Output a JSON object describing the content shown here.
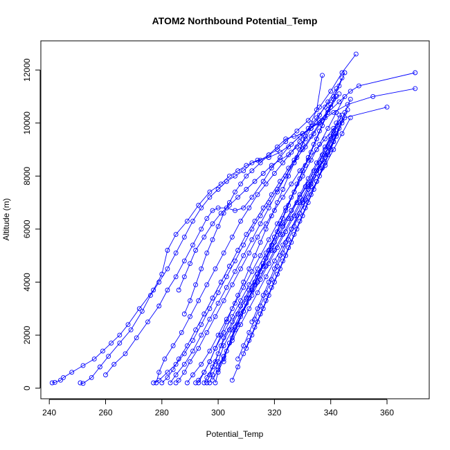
{
  "chart_data": {
    "type": "line",
    "title": "ATOM2 Northbound Potential_Temp",
    "xlabel": "Potential_Temp",
    "ylabel": "Altitude (m)",
    "xlim": [
      237,
      375
    ],
    "ylim": [
      -400,
      13100
    ],
    "xticks": [
      240,
      260,
      280,
      300,
      320,
      340,
      360
    ],
    "yticks": [
      0,
      2000,
      4000,
      6000,
      8000,
      10000,
      12000
    ],
    "grid": false,
    "legend": "none",
    "series_color": "#0000ff",
    "markers": "open-circle",
    "series": [
      {
        "x": [
          241,
          242,
          244,
          245,
          248,
          252,
          256,
          259,
          262,
          265,
          268,
          272,
          277,
          280,
          282,
          285,
          289,
          293,
          297,
          301,
          304,
          307,
          310,
          314,
          318,
          322,
          326,
          330,
          335,
          339,
          343,
          347,
          350,
          370
        ],
        "y": [
          200,
          220,
          300,
          400,
          600,
          850,
          1100,
          1400,
          1700,
          2000,
          2400,
          3000,
          3700,
          4300,
          5200,
          5800,
          6300,
          6900,
          7400,
          7700,
          8000,
          8200,
          8400,
          8600,
          8700,
          8900,
          9200,
          9600,
          10000,
          10400,
          10800,
          11200,
          11400,
          11900
        ]
      },
      {
        "x": [
          251,
          252,
          255,
          258,
          261,
          265,
          269,
          273,
          276,
          279,
          282,
          285,
          288,
          291,
          294,
          297,
          300,
          303,
          306,
          309,
          312,
          315,
          318,
          321,
          324,
          328,
          332,
          336,
          340,
          344,
          349
        ],
        "y": [
          200,
          180,
          400,
          800,
          1200,
          1700,
          2200,
          2900,
          3500,
          4000,
          4500,
          5100,
          5700,
          6300,
          6800,
          7200,
          7500,
          7800,
          8000,
          8200,
          8500,
          8600,
          8800,
          9000,
          9300,
          9700,
          10100,
          10600,
          11200,
          11900,
          12600
        ]
      },
      {
        "x": [
          260,
          263,
          267,
          271,
          275,
          279,
          282,
          285,
          288,
          291,
          294,
          296,
          298,
          300,
          303,
          306,
          309,
          312,
          316,
          319,
          322,
          325,
          329,
          333,
          337,
          341,
          346,
          355,
          370
        ],
        "y": [
          500,
          900,
          1300,
          1900,
          2500,
          3100,
          3700,
          4200,
          4800,
          5400,
          6000,
          6400,
          6700,
          6800,
          6800,
          6700,
          6800,
          7200,
          7800,
          8300,
          8700,
          9100,
          9500,
          9800,
          10100,
          10400,
          10700,
          11000,
          11300
        ]
      },
      {
        "x": [
          278,
          279,
          281,
          284,
          287,
          290,
          293,
          296,
          299,
          302,
          305,
          308,
          311,
          314,
          317,
          320,
          323,
          326,
          329,
          332,
          335,
          338,
          341,
          344
        ],
        "y": [
          200,
          600,
          1100,
          1600,
          2100,
          2700,
          3300,
          3900,
          4500,
          5100,
          5700,
          6300,
          6800,
          7300,
          7700,
          8100,
          8500,
          8900,
          9300,
          9800,
          10200,
          10600,
          11000,
          11700
        ]
      },
      {
        "x": [
          280,
          282,
          284,
          286,
          289,
          292,
          295,
          298,
          301,
          304,
          307,
          310,
          313,
          316,
          319,
          322,
          325,
          328,
          331,
          334,
          337,
          340,
          343
        ],
        "y": [
          200,
          400,
          700,
          1100,
          1600,
          2200,
          2800,
          3400,
          4000,
          4600,
          5200,
          5800,
          6300,
          6800,
          7300,
          7800,
          8300,
          8700,
          9100,
          9600,
          10100,
          10600,
          11100
        ]
      },
      {
        "x": [
          285,
          286,
          288,
          290,
          293,
          296,
          299,
          302,
          305,
          308,
          311,
          314,
          317,
          320,
          323,
          326,
          329,
          332,
          335,
          338,
          341,
          345,
          360
        ],
        "y": [
          200,
          300,
          600,
          1000,
          1500,
          2100,
          2700,
          3300,
          3900,
          4500,
          5100,
          5700,
          6200,
          6700,
          7200,
          7700,
          8200,
          8600,
          9000,
          9400,
          9800,
          10200,
          10600
        ]
      },
      {
        "x": [
          292,
          293,
          295,
          297,
          299,
          302,
          305,
          308,
          311,
          314,
          317,
          320,
          323,
          326,
          329,
          332,
          335,
          338,
          341,
          344,
          347
        ],
        "y": [
          200,
          300,
          600,
          1000,
          1500,
          2100,
          2700,
          3300,
          3900,
          4500,
          5100,
          5700,
          6200,
          6700,
          7200,
          7700,
          8200,
          8700,
          9300,
          10100,
          10900
        ]
      },
      {
        "x": [
          295,
          296,
          298,
          300,
          302,
          305,
          308,
          311,
          314,
          317,
          320,
          323,
          326,
          329,
          332,
          335,
          338,
          341,
          344
        ],
        "y": [
          200,
          400,
          800,
          1300,
          1900,
          2500,
          3100,
          3700,
          4300,
          4900,
          5500,
          6100,
          6700,
          7300,
          7900,
          8500,
          9100,
          9700,
          10300
        ]
      },
      {
        "x": [
          297,
          298,
          300,
          302,
          305,
          308,
          311,
          314,
          317,
          320,
          323,
          326,
          329,
          332,
          335,
          338,
          341,
          343
        ],
        "y": [
          200,
          500,
          1000,
          1600,
          2200,
          2800,
          3400,
          4000,
          4600,
          5200,
          5800,
          6400,
          7000,
          7600,
          8200,
          8800,
          9500,
          10300
        ]
      },
      {
        "x": [
          299,
          300,
          302,
          304,
          306,
          309,
          312,
          315,
          318,
          321,
          324,
          327,
          330,
          333,
          336,
          339,
          342,
          345
        ],
        "y": [
          200,
          600,
          1100,
          1700,
          2300,
          2900,
          3500,
          4100,
          4700,
          5300,
          5900,
          6500,
          7100,
          7700,
          8300,
          8900,
          9600,
          10400
        ]
      },
      {
        "x": [
          283,
          285,
          288,
          291,
          294,
          297,
          300,
          303,
          306,
          309,
          312,
          315,
          318,
          321,
          324,
          327,
          330,
          333,
          336,
          339,
          342
        ],
        "y": [
          200,
          500,
          900,
          1400,
          2000,
          2600,
          3200,
          3800,
          4400,
          5000,
          5600,
          6200,
          6800,
          7400,
          8000,
          8600,
          9200,
          9800,
          10300,
          10800,
          11300
        ]
      },
      {
        "x": [
          288,
          290,
          292,
          294,
          296,
          298,
          300,
          302,
          304,
          306,
          308,
          310,
          312,
          315,
          318,
          321,
          324,
          327,
          330,
          333,
          336
        ],
        "y": [
          2800,
          3300,
          3900,
          4500,
          5100,
          5600,
          6100,
          6600,
          7000,
          7400,
          7700,
          8000,
          8200,
          8500,
          8800,
          9100,
          9400,
          9500,
          9600,
          9800,
          10100
        ]
      },
      {
        "x": [
          277,
          279,
          282,
          285,
          288,
          291,
          294,
          297,
          300,
          303,
          306,
          309,
          312,
          315,
          318,
          321,
          324,
          327,
          330,
          333,
          336,
          339,
          342
        ],
        "y": [
          200,
          300,
          600,
          900,
          1300,
          1800,
          2400,
          3000,
          3600,
          4200,
          4800,
          5400,
          6000,
          6500,
          7000,
          7500,
          8000,
          8500,
          9000,
          9500,
          10000,
          10500,
          11000
        ]
      },
      {
        "x": [
          302,
          303,
          305,
          307,
          309,
          311,
          313,
          315,
          317,
          319,
          321,
          323,
          325,
          327,
          329,
          331,
          333,
          335,
          337,
          339,
          341,
          343,
          345
        ],
        "y": [
          1000,
          1400,
          1900,
          2400,
          2900,
          3400,
          3900,
          4400,
          4900,
          5400,
          5900,
          6400,
          6900,
          7400,
          7900,
          8400,
          8900,
          9400,
          9900,
          10400,
          10900,
          11400,
          11900
        ]
      },
      {
        "x": [
          300,
          302,
          304,
          306,
          308,
          310,
          312,
          314,
          316,
          318,
          320,
          322,
          324,
          326,
          328,
          330,
          332,
          334,
          336,
          338,
          340
        ],
        "y": [
          800,
          1200,
          1700,
          2200,
          2700,
          3200,
          3700,
          4200,
          4700,
          5200,
          5700,
          6200,
          6700,
          7200,
          7700,
          8200,
          8700,
          9200,
          9700,
          10200,
          10700
        ]
      },
      {
        "x": [
          293,
          295,
          297,
          299,
          301,
          303,
          305,
          307,
          309,
          311,
          313,
          315,
          317,
          319,
          321,
          323,
          325,
          327,
          329,
          331,
          333,
          335,
          337
        ],
        "y": [
          200,
          600,
          1000,
          1500,
          2000,
          2500,
          3000,
          3500,
          4000,
          4500,
          5000,
          5500,
          6000,
          6500,
          7000,
          7500,
          8000,
          8500,
          9000,
          9500,
          10000,
          10500,
          11800
        ]
      },
      {
        "x": [
          305,
          307,
          309,
          311,
          313,
          315,
          317,
          319,
          321,
          323,
          325,
          327,
          329,
          331,
          333,
          335,
          337,
          339,
          341,
          343
        ],
        "y": [
          300,
          800,
          1300,
          1800,
          2300,
          2800,
          3300,
          3800,
          4300,
          4800,
          5300,
          5800,
          6300,
          6800,
          7300,
          7800,
          8300,
          8800,
          9300,
          9800
        ]
      },
      {
        "x": [
          307,
          309,
          311,
          313,
          315,
          317,
          319,
          321,
          323,
          325,
          327,
          329,
          331,
          333,
          335,
          337,
          339,
          341
        ],
        "y": [
          1100,
          1600,
          2100,
          2600,
          3100,
          3600,
          4100,
          4600,
          5100,
          5600,
          6100,
          6600,
          7100,
          7600,
          8100,
          8600,
          9100,
          9600
        ]
      },
      {
        "x": [
          310,
          312,
          314,
          316,
          318,
          320,
          322,
          324,
          326,
          328,
          330,
          332,
          334,
          336,
          338,
          340,
          342,
          344,
          346
        ],
        "y": [
          1500,
          2000,
          2500,
          3000,
          3500,
          4000,
          4500,
          5000,
          5500,
          6000,
          6500,
          7000,
          7500,
          8000,
          8500,
          9000,
          9500,
          10000,
          10500
        ]
      },
      {
        "x": [
          296,
          297,
          299,
          301,
          304,
          307,
          310,
          313,
          316,
          319,
          322,
          325,
          328,
          331,
          334,
          337,
          340,
          343
        ],
        "y": [
          200,
          500,
          1000,
          1600,
          2200,
          2800,
          3400,
          4000,
          4600,
          5200,
          5800,
          6400,
          7000,
          7600,
          8200,
          8800,
          9400,
          10000
        ]
      },
      {
        "x": [
          312,
          314,
          316,
          318,
          320,
          322,
          324,
          326,
          328,
          330,
          332,
          334,
          336,
          338,
          340,
          342
        ],
        "y": [
          2500,
          3000,
          3500,
          4000,
          4500,
          5000,
          5500,
          6000,
          6500,
          7000,
          7500,
          8000,
          8500,
          9000,
          9500,
          10000
        ]
      },
      {
        "x": [
          289,
          291,
          294,
          297,
          300,
          303,
          306,
          309,
          312,
          315,
          318,
          321,
          324,
          327,
          330,
          333,
          336,
          339,
          342,
          345
        ],
        "y": [
          200,
          500,
          900,
          1400,
          2000,
          2600,
          3200,
          3800,
          4400,
          5000,
          5600,
          6200,
          6800,
          7400,
          8000,
          8600,
          9200,
          9800,
          10400,
          11000
        ]
      },
      {
        "x": [
          298,
          300,
          302,
          305,
          308,
          311,
          314,
          317,
          320,
          323,
          326,
          329,
          332,
          335,
          338,
          341,
          344,
          347
        ],
        "y": [
          300,
          700,
          1200,
          1800,
          2400,
          3000,
          3600,
          4200,
          4800,
          5400,
          6000,
          6600,
          7200,
          7800,
          8400,
          9000,
          9600,
          10200
        ]
      },
      {
        "x": [
          286,
          288,
          290,
          292,
          295,
          298,
          301,
          304,
          307,
          310,
          313,
          316,
          319,
          322,
          325,
          328,
          331
        ],
        "y": [
          3700,
          4200,
          4700,
          5200,
          5700,
          6200,
          6600,
          6900,
          7200,
          7500,
          7800,
          8100,
          8400,
          8600,
          8800,
          9100,
          9400
        ]
      }
    ]
  }
}
